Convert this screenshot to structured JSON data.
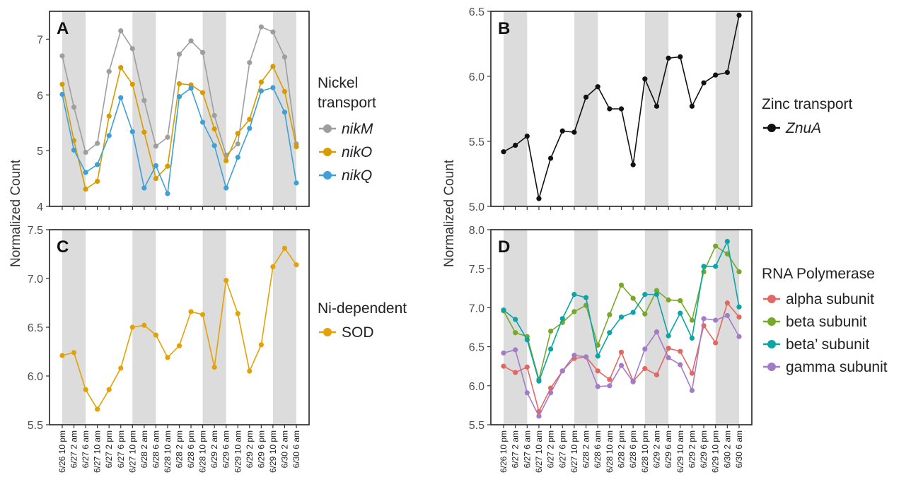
{
  "figure": {
    "ylabel_left": "Normalized Count",
    "ylabel_right": "Normalized Count"
  },
  "time_labels": [
    "6/26 10 pm",
    "6/27 2 am",
    "6/27 6 am",
    "6/27 10 am",
    "6/27 2 pm",
    "6/27 6 pm",
    "6/27 10 pm",
    "6/28 2 am",
    "6/28 6 am",
    "6/28 10 am",
    "6/28 2 pm",
    "6/28 6 pm",
    "6/28 10 pm",
    "6/29 2 am",
    "6/29 6 am",
    "6/29 10 am",
    "6/29 2 pm",
    "6/29 6 pm",
    "6/29 10 pm",
    "6/30 2 am",
    "6/30 6 am"
  ],
  "night_bands": [
    [
      0,
      2
    ],
    [
      6,
      8
    ],
    [
      12,
      14
    ],
    [
      18,
      20
    ]
  ],
  "colors": {
    "gray_band": "#dcdcdc",
    "nikM": "#9e9e9e",
    "nikO": "#d89b00",
    "nikQ": "#3ea0d6",
    "ZnuA": "#111111",
    "SOD": "#e3a208",
    "alpha": "#e06a63",
    "beta": "#78a829",
    "beta_prime": "#0aa5a7",
    "gamma": "#a37cc8"
  },
  "chart_data": [
    {
      "panel": "A",
      "type": "line",
      "ylim": [
        4,
        7.5
      ],
      "yticks": [
        "4",
        "5",
        "6",
        "7"
      ],
      "legend_title": [
        "Nickel",
        "transport"
      ],
      "series": [
        {
          "name": "nikM",
          "color_key": "nikM",
          "values": [
            6.7,
            5.78,
            4.97,
            5.13,
            6.42,
            7.15,
            6.83,
            5.9,
            5.08,
            5.24,
            6.73,
            6.97,
            6.76,
            5.63,
            4.92,
            5.12,
            6.58,
            7.22,
            7.13,
            6.68,
            5.12
          ]
        },
        {
          "name": "nikO",
          "color_key": "nikO",
          "values": [
            6.19,
            5.18,
            4.31,
            4.45,
            5.62,
            6.49,
            6.19,
            5.33,
            4.5,
            4.72,
            6.2,
            6.18,
            6.04,
            5.39,
            4.82,
            5.31,
            5.56,
            6.23,
            6.51,
            6.06,
            5.07
          ]
        },
        {
          "name": "nikQ",
          "color_key": "nikQ",
          "values": [
            6.01,
            5.01,
            4.61,
            4.75,
            5.27,
            5.95,
            5.34,
            4.33,
            4.73,
            4.23,
            5.97,
            6.12,
            5.51,
            5.09,
            4.33,
            4.88,
            5.4,
            6.07,
            6.13,
            5.69,
            4.42
          ]
        }
      ]
    },
    {
      "panel": "B",
      "type": "line",
      "ylim": [
        5.0,
        6.5
      ],
      "yticks": [
        "5.0",
        "5.5",
        "6.0",
        "6.5"
      ],
      "legend_title": [
        "Zinc transport"
      ],
      "series": [
        {
          "name": "ZnuA",
          "color_key": "ZnuA",
          "values": [
            5.42,
            5.47,
            5.54,
            5.06,
            5.37,
            5.58,
            5.57,
            5.84,
            5.92,
            5.75,
            5.75,
            5.32,
            5.98,
            5.77,
            6.14,
            6.15,
            5.77,
            5.95,
            6.01,
            6.03,
            6.47
          ]
        }
      ]
    },
    {
      "panel": "C",
      "type": "line",
      "ylim": [
        5.5,
        7.5
      ],
      "yticks": [
        "5.5",
        "6.0",
        "6.5",
        "7.0",
        "7.5"
      ],
      "legend_title": [
        "Ni-dependent"
      ],
      "series": [
        {
          "name": "SOD",
          "color_key": "SOD",
          "values": [
            6.21,
            6.24,
            5.86,
            5.66,
            5.86,
            6.08,
            6.5,
            6.52,
            6.42,
            6.19,
            6.31,
            6.66,
            6.63,
            6.09,
            6.98,
            6.64,
            6.05,
            6.32,
            7.12,
            7.31,
            7.14
          ]
        }
      ]
    },
    {
      "panel": "D",
      "type": "line",
      "ylim": [
        5.5,
        8.0
      ],
      "yticks": [
        "5.5",
        "6.0",
        "6.5",
        "7.0",
        "7.5",
        "8.0"
      ],
      "legend_title": [
        "RNA Polymerase"
      ],
      "series": [
        {
          "name": "alpha subunit",
          "color_key": "alpha",
          "values": [
            6.25,
            6.17,
            6.24,
            5.67,
            5.97,
            6.19,
            6.35,
            6.37,
            6.19,
            6.08,
            6.43,
            6.06,
            6.22,
            6.14,
            6.48,
            6.44,
            6.16,
            6.77,
            6.55,
            7.06,
            6.88
          ]
        },
        {
          "name": "beta subunit",
          "color_key": "beta",
          "values": [
            6.96,
            6.68,
            6.63,
            6.08,
            6.7,
            6.81,
            6.95,
            7.03,
            6.52,
            6.91,
            7.29,
            7.12,
            6.92,
            7.22,
            7.1,
            7.09,
            6.84,
            7.46,
            7.79,
            7.69,
            7.46
          ]
        },
        {
          "name": "beta’ subunit",
          "color_key": "beta_prime",
          "values": [
            6.97,
            6.85,
            6.59,
            6.06,
            6.47,
            6.86,
            7.17,
            7.13,
            6.38,
            6.68,
            6.88,
            6.94,
            7.17,
            7.17,
            6.64,
            6.93,
            6.61,
            7.53,
            7.53,
            7.85,
            7.01
          ]
        },
        {
          "name": "gamma subunit",
          "color_key": "gamma",
          "values": [
            6.42,
            6.46,
            5.91,
            5.61,
            5.91,
            6.19,
            6.39,
            6.37,
            5.99,
            6.0,
            6.26,
            6.05,
            6.47,
            6.69,
            6.36,
            6.27,
            5.94,
            6.86,
            6.84,
            6.9,
            6.63
          ]
        }
      ]
    }
  ]
}
